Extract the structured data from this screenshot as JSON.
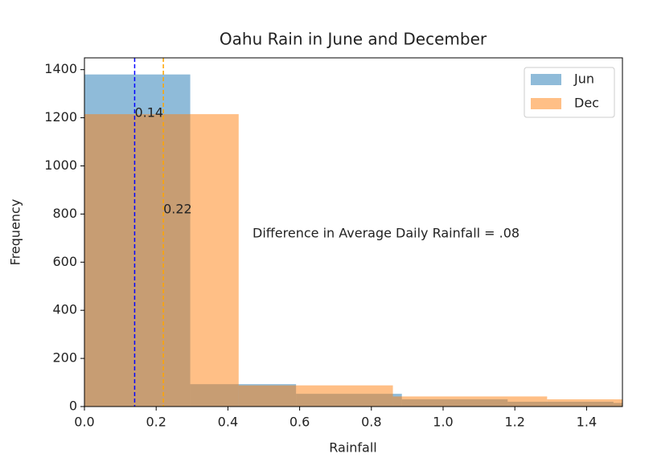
{
  "chart_data": {
    "type": "histogram",
    "title": "Oahu Rain in June and December",
    "xlabel": "Rainfall",
    "ylabel": "Frequency",
    "series": [
      {
        "name": "Jun",
        "color": "#1f77b4",
        "opacity": 0.5,
        "bins": [
          0,
          0.295,
          0.59,
          0.885,
          1.18,
          1.475,
          1.77
        ],
        "values": [
          1380,
          93,
          53,
          30,
          20,
          15
        ],
        "mean": {
          "value": 0.14,
          "label": "0.14"
        },
        "mean_color": "#0000ff"
      },
      {
        "name": "Dec",
        "color": "#ff7f0e",
        "opacity": 0.5,
        "bins": [
          0,
          0.43,
          0.86,
          1.29,
          1.72
        ],
        "values": [
          1215,
          88,
          42,
          30
        ],
        "mean": {
          "value": 0.22,
          "label": "0.22"
        },
        "mean_color": "#ffa500"
      }
    ],
    "annotation": "Difference in Average Daily Rainfall = .08",
    "xlim": [
      0,
      1.5
    ],
    "ylim": [
      0,
      1449
    ],
    "xticks": [
      {
        "value": 0,
        "label": "0.0"
      },
      0.2,
      0.4,
      0.6,
      0.8,
      {
        "value": 1,
        "label": "1.0"
      },
      1.2,
      1.4
    ],
    "yticks": [
      0,
      200,
      400,
      600,
      800,
      1000,
      1200,
      1400
    ],
    "legend": "upper right"
  }
}
